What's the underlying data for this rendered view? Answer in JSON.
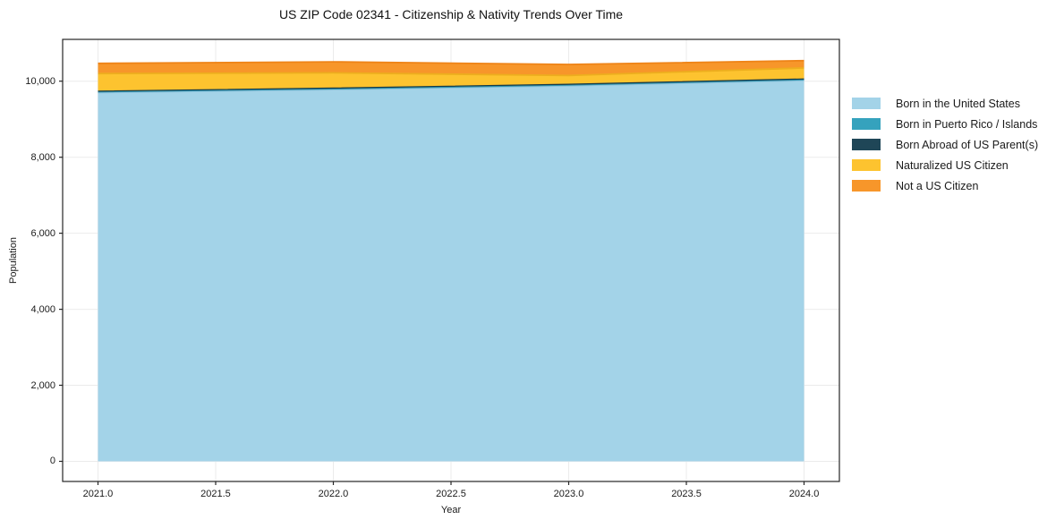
{
  "figure": {
    "background": "#ffffff",
    "text_color": "#1a1a1a",
    "grid_color": "#ebebeb",
    "spine_color": "#262626"
  },
  "chart_data": {
    "type": "area",
    "stacked": true,
    "title": "US ZIP Code 02341 - Citizenship & Nativity Trends Over Time",
    "xlabel": "Year",
    "ylabel": "Population",
    "x": [
      2021,
      2022,
      2023,
      2024
    ],
    "series": [
      {
        "name": "Born in the United States",
        "color": "#A3D3E8",
        "edge": "#8FC2DB",
        "values": [
          9700,
          9780,
          9880,
          10020
        ]
      },
      {
        "name": "Born in Puerto Rico / Islands",
        "color": "#35A2BD",
        "edge": "#2E93AC",
        "values": [
          15,
          15,
          15,
          15
        ]
      },
      {
        "name": "Born Abroad of US Parent(s)",
        "color": "#1F4657",
        "edge": "#183A48",
        "values": [
          25,
          25,
          25,
          25
        ]
      },
      {
        "name": "Naturalized US Citizen",
        "color": "#FDC32F",
        "edge": "#EDAE1E",
        "values": [
          460,
          400,
          230,
          290
        ]
      },
      {
        "name": "Not a US Citizen",
        "color": "#F7962A",
        "edge": "#EE8418",
        "values": [
          270,
          290,
          290,
          190
        ]
      }
    ],
    "xlim": [
      2020.85,
      2024.15
    ],
    "ylim": [
      -530,
      11100
    ],
    "xticks": {
      "values": [
        2021.0,
        2021.5,
        2022.0,
        2022.5,
        2023.0,
        2023.5,
        2024.0
      ],
      "labels": [
        "2021.0",
        "2021.5",
        "2022.0",
        "2022.5",
        "2023.0",
        "2023.5",
        "2024.0"
      ]
    },
    "yticks": {
      "values": [
        0,
        2000,
        4000,
        6000,
        8000,
        10000
      ],
      "labels": [
        "0",
        "2,000",
        "4,000",
        "6,000",
        "8,000",
        "10,000"
      ]
    },
    "grid": true,
    "legend_position": "right-outside"
  }
}
